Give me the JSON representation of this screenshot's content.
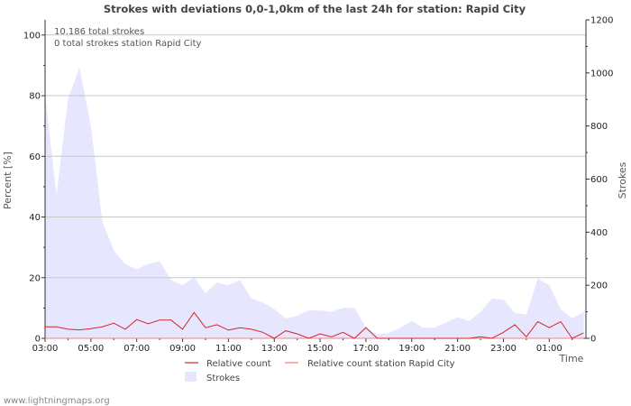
{
  "chart_data": {
    "type": "area",
    "title": "Strokes with deviations 0,0-1,0km of the last 24h for station: Rapid City",
    "ylabel_left": "Percent   [%]",
    "ylabel_right": "Strokes",
    "xlabel": "Time",
    "ylim_left": [
      0,
      105
    ],
    "ylim_right": [
      0,
      1200
    ],
    "yticks_left": [
      0,
      20,
      40,
      60,
      80,
      100
    ],
    "yticks_right": [
      0,
      200,
      400,
      600,
      800,
      1000,
      1200
    ],
    "xtick_labels": [
      "03:00",
      "05:00",
      "07:00",
      "09:00",
      "11:00",
      "13:00",
      "15:00",
      "17:00",
      "19:00",
      "21:00",
      "23:00",
      "01:00"
    ],
    "annotations": [
      "10.186 total strokes",
      "0 total strokes station Rapid City"
    ],
    "legend": {
      "relative_count": "Relative count",
      "relative_count_station": "Relative count station Rapid City",
      "strokes": "Strokes"
    },
    "colors": {
      "relative_count": "#d62728",
      "relative_count_station": "#f08080",
      "strokes_fill": "#e6e6ff"
    },
    "x_hours": [
      0,
      0.5,
      1,
      1.5,
      2,
      2.5,
      3,
      3.5,
      4,
      4.5,
      5,
      5.5,
      6,
      6.5,
      7,
      7.5,
      8,
      8.5,
      9,
      9.5,
      10,
      10.5,
      11,
      11.5,
      12,
      12.5,
      13,
      13.5,
      14,
      14.5,
      15,
      15.5,
      16,
      16.5,
      17,
      17.5,
      18,
      18.5,
      19,
      19.5,
      20,
      20.5,
      21,
      21.5,
      22,
      22.5,
      23,
      23.5
    ],
    "strokes": [
      920,
      540,
      900,
      1020,
      800,
      440,
      330,
      280,
      260,
      280,
      290,
      220,
      200,
      230,
      170,
      210,
      200,
      220,
      150,
      135,
      110,
      75,
      85,
      105,
      105,
      100,
      115,
      115,
      40,
      15,
      20,
      40,
      65,
      40,
      40,
      60,
      80,
      65,
      100,
      150,
      145,
      95,
      90,
      225,
      200,
      110,
      75,
      100
    ],
    "relative_count": [
      3.8,
      3.8,
      3.0,
      2.8,
      3.2,
      3.8,
      5.0,
      3.0,
      6.2,
      4.8,
      6.0,
      6.0,
      3.0,
      8.5,
      3.5,
      4.5,
      2.7,
      3.5,
      3.0,
      2.0,
      0.0,
      2.5,
      1.5,
      0.0,
      1.5,
      0.5,
      2.0,
      0.0,
      3.5,
      0.0,
      0.0,
      0.0,
      0.0,
      0.0,
      0.0,
      0.0,
      0.0,
      0.0,
      0.5,
      0.0,
      2.0,
      4.5,
      0.5,
      5.5,
      3.5,
      5.5,
      0.0,
      1.8
    ],
    "relative_count_station": [
      0,
      0,
      0,
      0,
      0,
      0,
      0,
      0,
      0,
      0,
      0,
      0,
      0,
      0,
      0,
      0,
      0,
      0,
      0,
      0,
      0,
      0,
      0,
      0,
      0,
      0,
      0,
      0,
      0,
      0,
      0,
      0,
      0,
      0,
      0,
      0,
      0,
      0,
      0,
      0,
      0,
      0,
      0,
      0,
      0,
      0,
      0,
      0
    ]
  },
  "footer": "www.lightningmaps.org"
}
